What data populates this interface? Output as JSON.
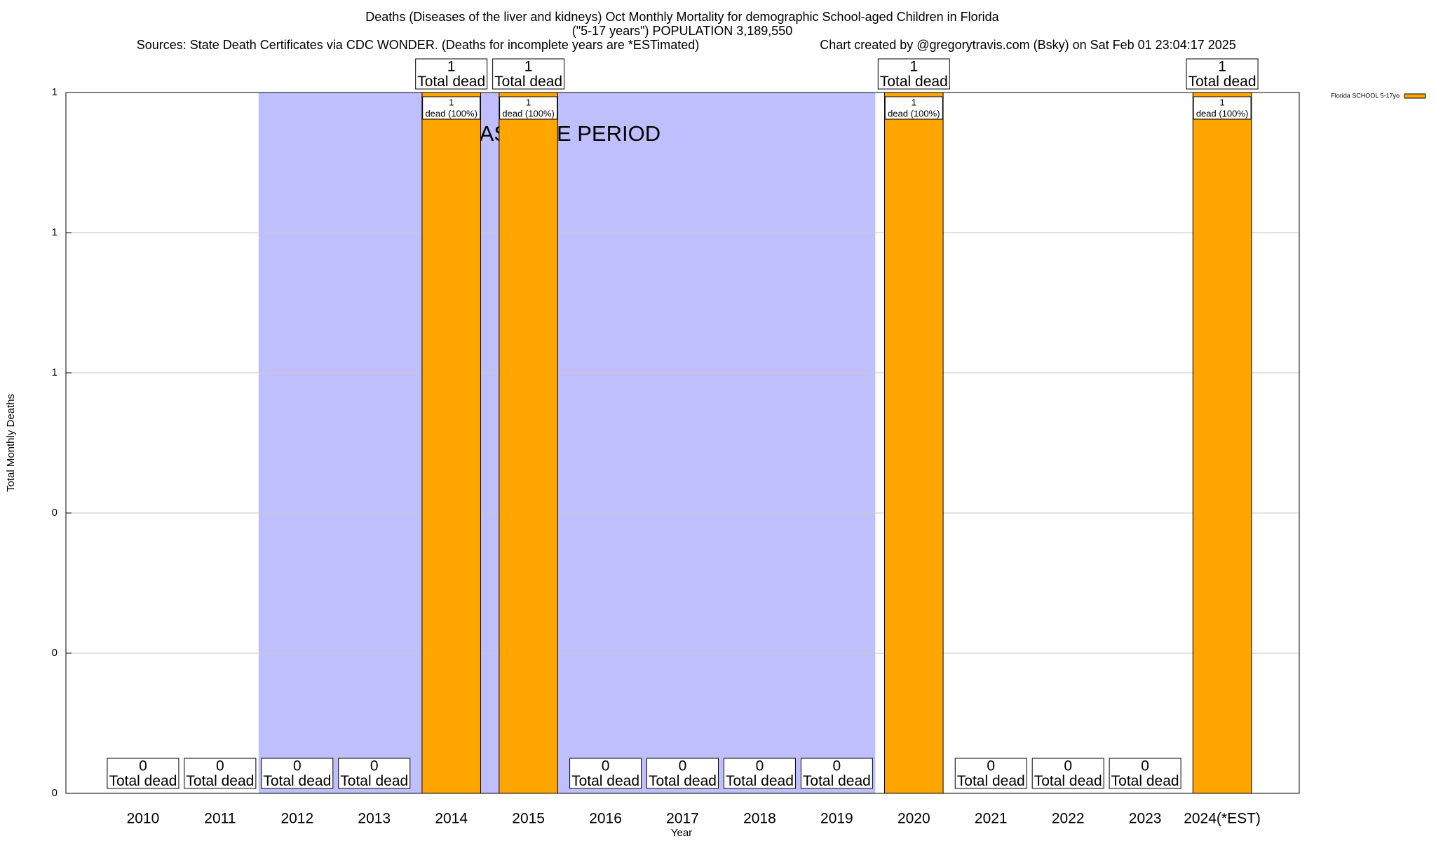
{
  "chart_data": {
    "type": "bar",
    "title": "Deaths (Diseases of the liver and kidneys) Oct Monthly Mortality for demographic School-aged Children in Florida",
    "subtitle": "(\"5-17 years\") POPULATION 3,189,550",
    "sources": "Sources: State Death Certificates via CDC WONDER. (Deaths for incomplete years are *ESTimated)",
    "credit": "Chart created by @gregorytravis.com (Bsky) on Sat Feb 01 23:04:17 2025",
    "x_label": "Year",
    "y_label": "Total Monthly Deaths",
    "categories": [
      "2010",
      "2011",
      "2012",
      "2013",
      "2014",
      "2015",
      "2016",
      "2017",
      "2018",
      "2019",
      "2020",
      "2021",
      "2022",
      "2023",
      "2024(*EST)"
    ],
    "series": [
      {
        "name": "Florida SCHOOL 5-17yo",
        "color": "#ffa500",
        "values": [
          0,
          0,
          0,
          0,
          1,
          1,
          0,
          0,
          0,
          0,
          1,
          0,
          0,
          0,
          1
        ],
        "percent_labels": [
          null,
          null,
          null,
          null,
          "dead (100%)",
          "dead (100%)",
          null,
          null,
          null,
          null,
          "dead (100%)",
          null,
          null,
          null,
          "dead (100%)"
        ]
      }
    ],
    "total_label": "Total dead",
    "shaded_region": {
      "label": "BASELINE PERIOD",
      "start": "2012",
      "end": "2019",
      "color": "#bfbffe"
    },
    "ylim": [
      0,
      1
    ],
    "yticks": [
      0,
      {
        "value": 0.2,
        "label": "0"
      },
      {
        "value": 0.4,
        "label": "0"
      },
      {
        "value": 0.6,
        "label": "1"
      },
      {
        "value": 0.8,
        "label": "1"
      },
      1
    ],
    "grid": true,
    "legend": "top-right"
  }
}
